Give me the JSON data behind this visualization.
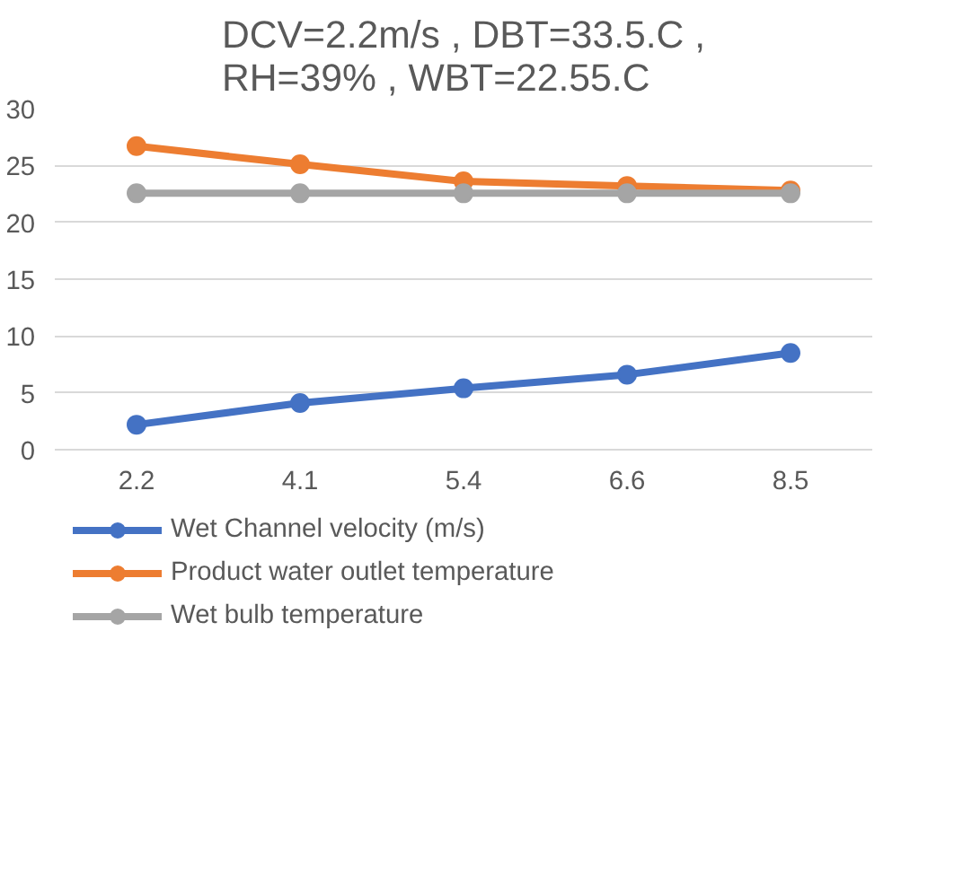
{
  "chart_data": {
    "type": "line",
    "title": "DCV=2.2m/s , DBT=33.5.C ,\nRH=39% , WBT=22.55.C",
    "categories": [
      "2.2",
      "4.1",
      "5.4",
      "6.6",
      "8.5"
    ],
    "series": [
      {
        "name": "Wet Channel velocity (m/s)",
        "color": "#4472c4",
        "values": [
          2.2,
          4.1,
          5.4,
          6.6,
          8.5
        ]
      },
      {
        "name": "Product water outlet temperature",
        "color": "#ed7d31",
        "values": [
          26.7,
          25.1,
          23.6,
          23.2,
          22.8
        ]
      },
      {
        "name": "Wet bulb temperature",
        "color": "#a5a5a5",
        "values": [
          22.55,
          22.55,
          22.55,
          22.55,
          22.55
        ]
      }
    ],
    "ylim": [
      0,
      30
    ],
    "yticks": [
      0,
      5,
      10,
      15,
      20,
      25,
      30
    ],
    "grid": "y",
    "legend": "bottom",
    "marker": "circle",
    "line_style": "solid"
  }
}
